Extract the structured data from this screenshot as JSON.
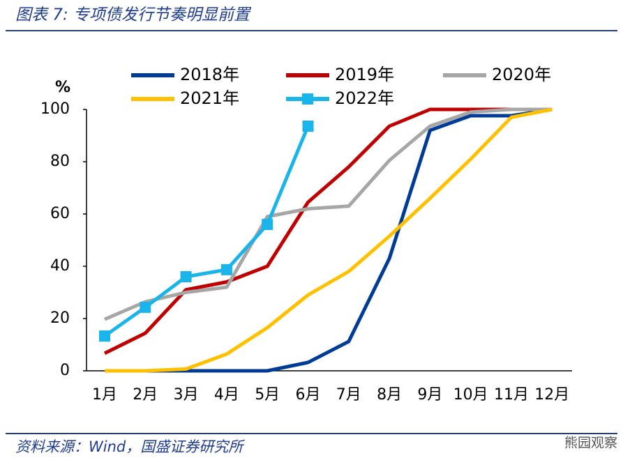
{
  "chart_data": {
    "type": "line",
    "title": "图表 7:  专项债发行节奏明显前置",
    "y_label": "%",
    "source": "资料来源：Wind，国盛证券研究所",
    "watermark": "熊园观察",
    "categories": [
      "1月",
      "2月",
      "3月",
      "4月",
      "5月",
      "6月",
      "7月",
      "8月",
      "9月",
      "10月",
      "11月",
      "12月"
    ],
    "series": [
      {
        "name": "2018年",
        "color": "#003b96",
        "values": [
          0,
          0,
          0,
          0,
          0,
          3.2,
          11.2,
          43,
          92,
          97.6,
          97.6,
          100
        ]
      },
      {
        "name": "2019年",
        "color": "#c00000",
        "values": [
          6.7,
          14.4,
          31,
          34,
          40,
          64.5,
          78,
          93.6,
          100,
          100,
          100,
          100
        ]
      },
      {
        "name": "2020年",
        "color": "#a6a6a6",
        "values": [
          19.7,
          26.4,
          30,
          32,
          59,
          62,
          63,
          80.5,
          93.6,
          99,
          100,
          100
        ]
      },
      {
        "name": "2021年",
        "color": "#ffc000",
        "values": [
          0,
          0,
          0.7,
          6.4,
          16.5,
          29,
          38,
          51.5,
          66,
          81,
          97,
          100
        ]
      },
      {
        "name": "2022年",
        "color": "#19b4ea",
        "marker": "square",
        "values": [
          13.3,
          24.3,
          36,
          38.7,
          56,
          93.6,
          null,
          null,
          null,
          null,
          null,
          null
        ]
      }
    ],
    "ylim": [
      0,
      100
    ],
    "yticks": [
      0,
      20,
      40,
      60,
      80,
      100
    ],
    "grid": false
  }
}
